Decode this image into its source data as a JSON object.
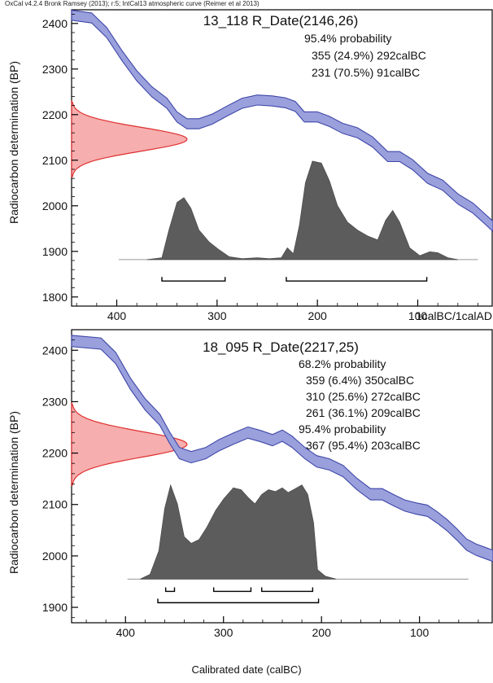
{
  "header": "OxCal v4.2.4 Bronk Ramsey (2013); r:5; IntCal13 atmospheric curve (Reimer et al 2013)",
  "xlabel": "Calibrated date (calBC)",
  "colors": {
    "curve_fill": "#9aa0dc",
    "curve_edge": "#3f47a8",
    "prob_fill": "#5c5c5c",
    "radiocarbon_fill": "#f4a0a0",
    "radiocarbon_edge": "#e03030"
  },
  "chart_data": [
    {
      "type": "area",
      "title": "13_118 R_Date(2146,26)",
      "ylabel": "Radiocarbon determination (BP)",
      "xlabel": "",
      "ylim": [
        1780,
        2430
      ],
      "xlim": [
        445,
        25
      ],
      "x_ticks": [
        400,
        300,
        200,
        100
      ],
      "x_tick_labels": [
        "400",
        "300",
        "200",
        "100"
      ],
      "x_end_label": "1calBC/1calAD",
      "y_ticks": [
        1800,
        1900,
        2000,
        2100,
        2200,
        2300,
        2400
      ],
      "radiocarbon": {
        "mean": 2146,
        "sd": 26
      },
      "annotations": [
        "95.4% probability",
        "355 (24.9%) 292calBC",
        "231 (70.5%) 91calBC"
      ],
      "calibration_curve": [
        {
          "x": 445,
          "y": 2418
        },
        {
          "x": 425,
          "y": 2412
        },
        {
          "x": 410,
          "y": 2380
        },
        {
          "x": 395,
          "y": 2330
        },
        {
          "x": 380,
          "y": 2285
        },
        {
          "x": 365,
          "y": 2250
        },
        {
          "x": 350,
          "y": 2225
        },
        {
          "x": 340,
          "y": 2195
        },
        {
          "x": 330,
          "y": 2180
        },
        {
          "x": 318,
          "y": 2180
        },
        {
          "x": 305,
          "y": 2190
        },
        {
          "x": 290,
          "y": 2208
        },
        {
          "x": 275,
          "y": 2225
        },
        {
          "x": 260,
          "y": 2232
        },
        {
          "x": 245,
          "y": 2230
        },
        {
          "x": 232,
          "y": 2226
        },
        {
          "x": 222,
          "y": 2218
        },
        {
          "x": 213,
          "y": 2195
        },
        {
          "x": 200,
          "y": 2195
        },
        {
          "x": 188,
          "y": 2185
        },
        {
          "x": 175,
          "y": 2170
        },
        {
          "x": 160,
          "y": 2160
        },
        {
          "x": 145,
          "y": 2140
        },
        {
          "x": 130,
          "y": 2108
        },
        {
          "x": 118,
          "y": 2108
        },
        {
          "x": 105,
          "y": 2090
        },
        {
          "x": 90,
          "y": 2060
        },
        {
          "x": 75,
          "y": 2045
        },
        {
          "x": 60,
          "y": 2015
        },
        {
          "x": 45,
          "y": 1995
        },
        {
          "x": 35,
          "y": 1975
        },
        {
          "x": 25,
          "y": 1955
        }
      ],
      "curve_halfwidth": 11,
      "probability": [
        {
          "x": 370,
          "p": 0
        },
        {
          "x": 355,
          "p": 0.02
        },
        {
          "x": 348,
          "p": 0.3
        },
        {
          "x": 340,
          "p": 0.58
        },
        {
          "x": 333,
          "p": 0.63
        },
        {
          "x": 326,
          "p": 0.52
        },
        {
          "x": 318,
          "p": 0.3
        },
        {
          "x": 308,
          "p": 0.18
        },
        {
          "x": 298,
          "p": 0.1
        },
        {
          "x": 288,
          "p": 0.03
        },
        {
          "x": 275,
          "p": 0.01
        },
        {
          "x": 260,
          "p": 0.02
        },
        {
          "x": 248,
          "p": 0.01
        },
        {
          "x": 236,
          "p": 0.02
        },
        {
          "x": 230,
          "p": 0.12
        },
        {
          "x": 224,
          "p": 0.06
        },
        {
          "x": 218,
          "p": 0.35
        },
        {
          "x": 212,
          "p": 0.78
        },
        {
          "x": 205,
          "p": 1.0
        },
        {
          "x": 196,
          "p": 0.98
        },
        {
          "x": 188,
          "p": 0.8
        },
        {
          "x": 180,
          "p": 0.55
        },
        {
          "x": 170,
          "p": 0.38
        },
        {
          "x": 160,
          "p": 0.3
        },
        {
          "x": 150,
          "p": 0.24
        },
        {
          "x": 140,
          "p": 0.2
        },
        {
          "x": 132,
          "p": 0.4
        },
        {
          "x": 125,
          "p": 0.5
        },
        {
          "x": 118,
          "p": 0.38
        },
        {
          "x": 108,
          "p": 0.12
        },
        {
          "x": 98,
          "p": 0.04
        },
        {
          "x": 88,
          "p": 0.08
        },
        {
          "x": 80,
          "p": 0.07
        },
        {
          "x": 70,
          "p": 0.02
        },
        {
          "x": 60,
          "p": 0
        }
      ],
      "prob_baseline_y": 1882,
      "prob_peak_y": 2098,
      "baseline_extent": [
        398,
        40
      ],
      "ranges": [
        {
          "label": "95.4%",
          "start": 355,
          "end": 292,
          "y": 1835
        },
        {
          "label": "95.4%",
          "start": 231,
          "end": 91,
          "y": 1835
        }
      ]
    },
    {
      "type": "area",
      "title": "18_095 R_Date(2217,25)",
      "ylabel": "Radiocarbon determination (BP)",
      "xlabel": "Calibrated date (calBC)",
      "ylim": [
        1870,
        2440
      ],
      "xlim": [
        455,
        25
      ],
      "x_ticks": [
        400,
        300,
        200,
        100
      ],
      "x_tick_labels": [
        "400",
        "300",
        "200",
        "100"
      ],
      "y_ticks": [
        1900,
        2000,
        2100,
        2200,
        2300,
        2400
      ],
      "radiocarbon": {
        "mean": 2217,
        "sd": 25
      },
      "annotations": [
        "68.2% probability",
        "359 (6.4%) 350calBC",
        "310 (25.6%) 272calBC",
        "261 (36.1%) 209calBC",
        "95.4% probability",
        "367 (95.4%) 203calBC"
      ],
      "calibration_curve": [
        {
          "x": 455,
          "y": 2418
        },
        {
          "x": 425,
          "y": 2413
        },
        {
          "x": 410,
          "y": 2385
        },
        {
          "x": 395,
          "y": 2335
        },
        {
          "x": 380,
          "y": 2295
        },
        {
          "x": 365,
          "y": 2265
        },
        {
          "x": 355,
          "y": 2230
        },
        {
          "x": 345,
          "y": 2200
        },
        {
          "x": 333,
          "y": 2192
        },
        {
          "x": 318,
          "y": 2200
        },
        {
          "x": 305,
          "y": 2215
        },
        {
          "x": 290,
          "y": 2228
        },
        {
          "x": 275,
          "y": 2240
        },
        {
          "x": 262,
          "y": 2233
        },
        {
          "x": 250,
          "y": 2225
        },
        {
          "x": 240,
          "y": 2234
        },
        {
          "x": 230,
          "y": 2222
        },
        {
          "x": 217,
          "y": 2200
        },
        {
          "x": 205,
          "y": 2184
        },
        {
          "x": 192,
          "y": 2178
        },
        {
          "x": 178,
          "y": 2165
        },
        {
          "x": 164,
          "y": 2140
        },
        {
          "x": 150,
          "y": 2120
        },
        {
          "x": 138,
          "y": 2120
        },
        {
          "x": 126,
          "y": 2108
        },
        {
          "x": 115,
          "y": 2098
        },
        {
          "x": 103,
          "y": 2092
        },
        {
          "x": 92,
          "y": 2088
        },
        {
          "x": 82,
          "y": 2075
        },
        {
          "x": 72,
          "y": 2060
        },
        {
          "x": 62,
          "y": 2042
        },
        {
          "x": 52,
          "y": 2022
        },
        {
          "x": 42,
          "y": 2012
        },
        {
          "x": 32,
          "y": 2005
        },
        {
          "x": 25,
          "y": 2000
        }
      ],
      "curve_halfwidth": 11,
      "probability": [
        {
          "x": 385,
          "p": 0
        },
        {
          "x": 375,
          "p": 0.05
        },
        {
          "x": 366,
          "p": 0.3
        },
        {
          "x": 360,
          "p": 0.75
        },
        {
          "x": 354,
          "p": 1.0
        },
        {
          "x": 347,
          "p": 0.8
        },
        {
          "x": 340,
          "p": 0.45
        },
        {
          "x": 333,
          "p": 0.38
        },
        {
          "x": 325,
          "p": 0.42
        },
        {
          "x": 317,
          "p": 0.55
        },
        {
          "x": 308,
          "p": 0.73
        },
        {
          "x": 300,
          "p": 0.85
        },
        {
          "x": 290,
          "p": 0.97
        },
        {
          "x": 282,
          "p": 0.95
        },
        {
          "x": 275,
          "p": 0.87
        },
        {
          "x": 268,
          "p": 0.8
        },
        {
          "x": 261,
          "p": 0.9
        },
        {
          "x": 254,
          "p": 0.95
        },
        {
          "x": 247,
          "p": 0.93
        },
        {
          "x": 240,
          "p": 0.97
        },
        {
          "x": 234,
          "p": 0.92
        },
        {
          "x": 227,
          "p": 0.96
        },
        {
          "x": 220,
          "p": 1.0
        },
        {
          "x": 214,
          "p": 0.9
        },
        {
          "x": 208,
          "p": 0.6
        },
        {
          "x": 204,
          "p": 0.1
        },
        {
          "x": 196,
          "p": 0.03
        },
        {
          "x": 185,
          "p": 0
        }
      ],
      "prob_baseline_y": 1955,
      "prob_peak_y": 2138,
      "baseline_extent": [
        398,
        50
      ],
      "ranges": [
        {
          "label": "68.2%",
          "start": 359,
          "end": 350,
          "y": 1931
        },
        {
          "label": "68.2%",
          "start": 310,
          "end": 272,
          "y": 1931
        },
        {
          "label": "68.2%",
          "start": 261,
          "end": 209,
          "y": 1931
        },
        {
          "label": "95.4%",
          "start": 367,
          "end": 203,
          "y": 1909
        }
      ]
    }
  ]
}
